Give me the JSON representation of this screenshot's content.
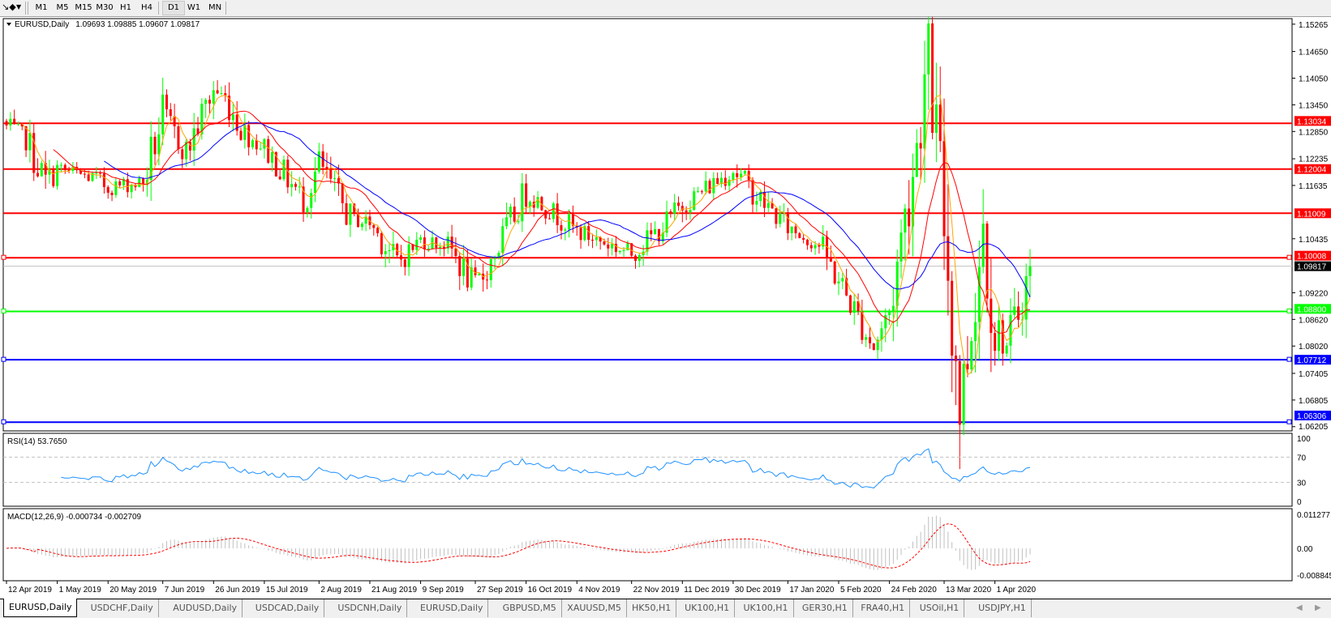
{
  "toolbar": {
    "tool_icon": "cursor-tools-icon",
    "timeframes": [
      "M1",
      "M5",
      "M15",
      "M30",
      "H1",
      "H4",
      "D1",
      "W1",
      "MN"
    ],
    "active_timeframe": "D1"
  },
  "chart": {
    "header": "EURUSD,Daily",
    "ohlc": "1.09693 1.09885 1.09607 1.09817",
    "colors": {
      "background": "#ffffff",
      "bull": "#00ff00",
      "bear": "#ff0000",
      "ma_fast": "#ffa500",
      "ma_mid": "#ff0000",
      "ma_slow": "#0000ff",
      "rsi": "#1e90ff",
      "macd_hist": "#c0c0c0",
      "macd_signal": "#ff0000"
    },
    "price_ticks": [
      "1.15265",
      "1.14650",
      "1.14050",
      "1.13450",
      "1.12850",
      "1.12235",
      "1.11635",
      "1.10435",
      "1.09220",
      "1.08620",
      "1.08020",
      "1.07405",
      "1.06805",
      "1.06205"
    ],
    "ylim": [
      1.0611,
      1.1539
    ],
    "levels": [
      {
        "price": "1.13034",
        "color": "#ff0000"
      },
      {
        "price": "1.12004",
        "color": "#ff0000"
      },
      {
        "price": "1.11009",
        "color": "#ff0000"
      },
      {
        "price": "1.10008",
        "color": "#ff0000"
      },
      {
        "price": "1.08800",
        "color": "#00ff00"
      },
      {
        "price": "1.07712",
        "color": "#0000ff"
      },
      {
        "price": "1.06306",
        "color": "#0000ff"
      }
    ],
    "bid": {
      "price": "1.09817",
      "color": "#000000"
    },
    "date_labels": [
      "12 Apr 2019",
      "1 May 2019",
      "20 May 2019",
      "7 Jun 2019",
      "26 Jun 2019",
      "15 Jul 2019",
      "2 Aug 2019",
      "21 Aug 2019",
      "9 Sep 2019",
      "27 Sep 2019",
      "16 Oct 2019",
      "4 Nov 2019",
      "22 Nov 2019",
      "11 Dec 2019",
      "30 Dec 2019",
      "17 Jan 2020",
      "5 Feb 2020",
      "24 Feb 2020",
      "13 Mar 2020",
      "1 Apr 2020"
    ]
  },
  "chart_data": {
    "type": "candlestick",
    "symbol": "EURUSD",
    "timeframe": "Daily",
    "close_path": [
      [
        "2019-04-12",
        1.1295
      ],
      [
        "2019-04-19",
        1.1266
      ],
      [
        "2019-04-26",
        1.117
      ],
      [
        "2019-05-01",
        1.12
      ],
      [
        "2019-05-14",
        1.118
      ],
      [
        "2019-05-20",
        1.116
      ],
      [
        "2019-05-31",
        1.117
      ],
      [
        "2019-06-07",
        1.132
      ],
      [
        "2019-06-17",
        1.124
      ],
      [
        "2019-06-26",
        1.138
      ],
      [
        "2019-07-01",
        1.136
      ],
      [
        "2019-07-08",
        1.128
      ],
      [
        "2019-07-15",
        1.125
      ],
      [
        "2019-07-29",
        1.113
      ],
      [
        "2019-08-02",
        1.121
      ],
      [
        "2019-08-14",
        1.109
      ],
      [
        "2019-08-21",
        1.108
      ],
      [
        "2019-08-30",
        1.099
      ],
      [
        "2019-09-09",
        1.104
      ],
      [
        "2019-09-18",
        1.103
      ],
      [
        "2019-09-27",
        1.093
      ],
      [
        "2019-10-04",
        1.101
      ],
      [
        "2019-10-16",
        1.115
      ],
      [
        "2019-11-04",
        1.106
      ],
      [
        "2019-11-22",
        1.101
      ],
      [
        "2019-12-04",
        1.107
      ],
      [
        "2019-12-11",
        1.112
      ],
      [
        "2019-12-30",
        1.12
      ],
      [
        "2020-01-07",
        1.114
      ],
      [
        "2020-01-17",
        1.107
      ],
      [
        "2020-01-29",
        1.103
      ],
      [
        "2020-02-05",
        1.095
      ],
      [
        "2020-02-18",
        1.08
      ],
      [
        "2020-02-24",
        1.088
      ],
      [
        "2020-03-03",
        1.12
      ],
      [
        "2020-03-09",
        1.145
      ],
      [
        "2020-03-13",
        1.108
      ],
      [
        "2020-03-19",
        1.068
      ],
      [
        "2020-03-23",
        1.078
      ],
      [
        "2020-03-27",
        1.108
      ],
      [
        "2020-04-01",
        1.0855
      ],
      [
        "2020-04-06",
        1.08
      ],
      [
        "2020-04-10",
        1.091
      ],
      [
        "2020-04-14",
        1.09817
      ]
    ]
  },
  "rsi": {
    "label": "RSI(14) 53.7650",
    "ticks": [
      "100",
      "70",
      "30",
      "0"
    ]
  },
  "macd": {
    "label": "MACD(12,26,9) -0.000734 -0.002709",
    "ticks": [
      "0.011277",
      "0.00",
      "-0.008845"
    ],
    "ylim": [
      -0.008845,
      0.011277
    ]
  },
  "tabs": [
    "EURUSD,Daily",
    "USDCHF,Daily",
    "AUDUSD,Daily",
    "USDCAD,Daily",
    "USDCNH,Daily",
    "EURUSD,Daily",
    "GBPUSD,M5",
    "XAUUSD,M5",
    "HK50,H1",
    "UK100,H1",
    "UK100,H1",
    "GER30,H1",
    "FRA40,H1",
    "USOil,H1",
    "USDJPY,H1"
  ],
  "active_tab": 0
}
